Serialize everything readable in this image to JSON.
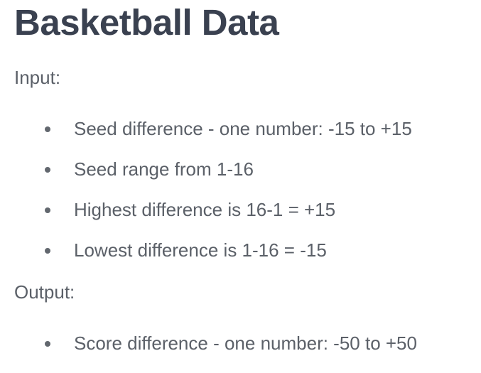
{
  "title": "Basketball Data",
  "input": {
    "label": "Input:",
    "items": [
      "Seed difference - one number: -15 to +15",
      "Seed range from 1-16",
      "Highest difference is 16-1 = +15",
      "Lowest difference is 1-16 = -15"
    ]
  },
  "output": {
    "label": "Output:",
    "items": [
      "Score difference - one number: -50 to +50"
    ]
  }
}
